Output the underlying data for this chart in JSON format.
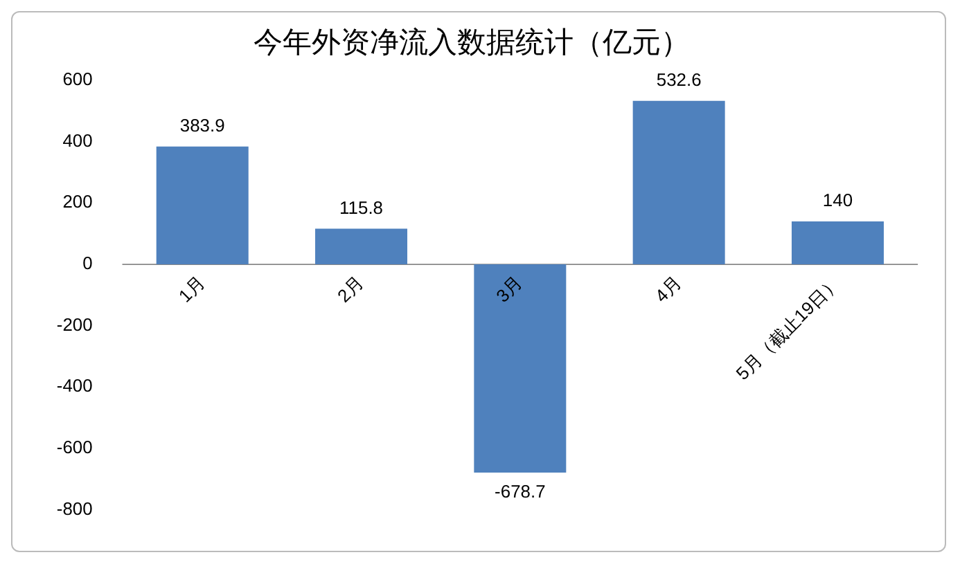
{
  "chart_data": {
    "type": "bar",
    "title": "今年外资净流入数据统计（亿元）",
    "categories": [
      "1月",
      "2月",
      "3月",
      "4月",
      "5月（截止19日）"
    ],
    "values": [
      383.9,
      115.8,
      -678.7,
      532.6,
      140
    ],
    "color": "#4f81bd",
    "ylim": [
      -800,
      600
    ],
    "yticks": [
      -800,
      -600,
      -400,
      -200,
      0,
      200,
      400,
      600
    ],
    "grid": false,
    "legend": false,
    "data_labels": true
  }
}
